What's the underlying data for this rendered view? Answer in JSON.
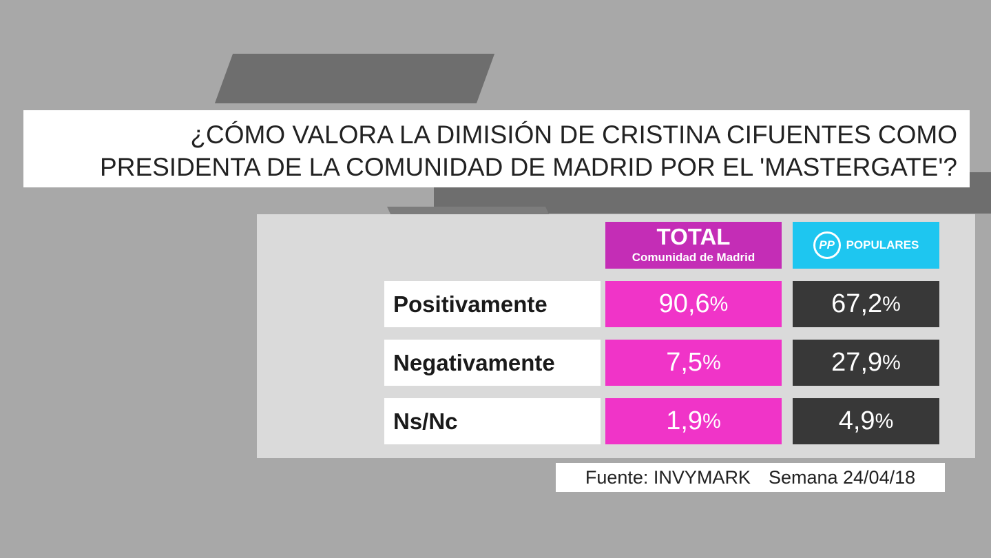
{
  "title": {
    "lines": [
      "¿CÓMO VALORA LA DIMISIÓN DE CRISTINA CIFUENTES COMO",
      "PRESIDENTA DE LA COMUNIDAD DE MADRID POR EL 'MASTERGATE'?"
    ]
  },
  "table": {
    "columns": [
      {
        "title": "TOTAL",
        "subtitle": "Comunidad de Madrid"
      },
      {
        "logo": "PP",
        "title": "POPULARES"
      }
    ],
    "unit": "%",
    "rows": [
      {
        "label": "Positivamente",
        "cells": [
          "90,6",
          "67,2"
        ]
      },
      {
        "label": "Negativamente",
        "cells": [
          "7,5",
          "27,9"
        ]
      },
      {
        "label": "Ns/Nc",
        "cells": [
          "1,9",
          "4,9"
        ]
      }
    ]
  },
  "footer": {
    "source": "Fuente: INVYMARK",
    "date": "Semana 24/04/18"
  }
}
